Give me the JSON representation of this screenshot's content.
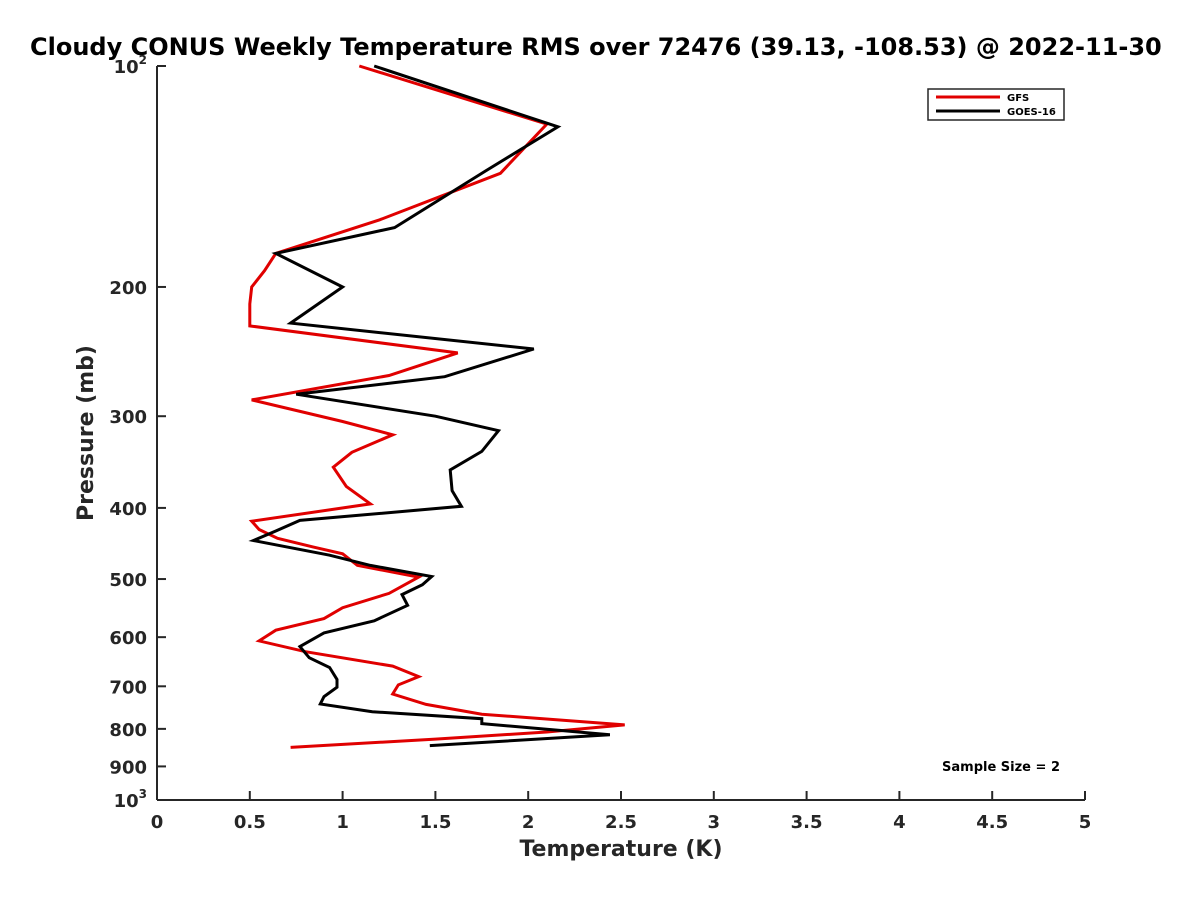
{
  "chart_data": {
    "type": "line",
    "title": "Cloudy CONUS Weekly Temperature RMS over 72476 (39.13, -108.53) @ 2022-11-30",
    "xlabel": "Temperature (K)",
    "ylabel": "Pressure (mb)",
    "xlim": [
      0,
      5
    ],
    "ylim": [
      100,
      1000
    ],
    "yscale": "log",
    "y_reversed": true,
    "grid": false,
    "legend_position": "top-right",
    "xticks": [
      "0",
      "0.5",
      "1",
      "1.5",
      "2",
      "2.5",
      "3",
      "3.5",
      "4",
      "4.5",
      "5"
    ],
    "yticks": [
      {
        "value": 100,
        "base": "10",
        "exp": "2"
      },
      {
        "value": 200,
        "label": "200"
      },
      {
        "value": 300,
        "label": "300"
      },
      {
        "value": 400,
        "label": "400"
      },
      {
        "value": 500,
        "label": "500"
      },
      {
        "value": 600,
        "label": "600"
      },
      {
        "value": 700,
        "label": "700"
      },
      {
        "value": 800,
        "label": "800"
      },
      {
        "value": 900,
        "label": "900"
      },
      {
        "value": 1000,
        "base": "10",
        "exp": "3"
      }
    ],
    "annotation": "Sample Size = 2",
    "series": [
      {
        "name": "GFS",
        "color": "#e00000",
        "points": [
          [
            1.09,
            100
          ],
          [
            2.1,
            120
          ],
          [
            1.85,
            140
          ],
          [
            1.2,
            162
          ],
          [
            0.64,
            180
          ],
          [
            0.58,
            190
          ],
          [
            0.51,
            200
          ],
          [
            0.5,
            211
          ],
          [
            0.5,
            226
          ],
          [
            1.62,
            246
          ],
          [
            1.25,
            264
          ],
          [
            0.51,
            285
          ],
          [
            1.0,
            305
          ],
          [
            1.27,
            318
          ],
          [
            1.05,
            336
          ],
          [
            0.95,
            352
          ],
          [
            1.02,
            374
          ],
          [
            1.15,
            395
          ],
          [
            0.51,
            417
          ],
          [
            0.55,
            428
          ],
          [
            0.65,
            440
          ],
          [
            0.84,
            452
          ],
          [
            1.0,
            462
          ],
          [
            1.08,
            479
          ],
          [
            1.41,
            497
          ],
          [
            1.25,
            523
          ],
          [
            1.0,
            547
          ],
          [
            0.9,
            566
          ],
          [
            0.64,
            587
          ],
          [
            0.55,
            607
          ],
          [
            0.8,
            628
          ],
          [
            1.27,
            657
          ],
          [
            1.41,
            679
          ],
          [
            1.3,
            697
          ],
          [
            1.27,
            717
          ],
          [
            1.45,
            741
          ],
          [
            1.75,
            764
          ],
          [
            2.52,
            790
          ],
          [
            2.1,
            808
          ],
          [
            1.5,
            826
          ],
          [
            0.72,
            848
          ]
        ]
      },
      {
        "name": "GOES-16",
        "color": "#000000",
        "points": [
          [
            1.17,
            100
          ],
          [
            2.16,
            121
          ],
          [
            1.77,
            139
          ],
          [
            1.28,
            166
          ],
          [
            0.64,
            180
          ],
          [
            1.0,
            200
          ],
          [
            0.72,
            224
          ],
          [
            2.03,
            243
          ],
          [
            1.55,
            265
          ],
          [
            0.75,
            280
          ],
          [
            1.5,
            300
          ],
          [
            1.84,
            314
          ],
          [
            1.75,
            335
          ],
          [
            1.58,
            355
          ],
          [
            1.59,
            379
          ],
          [
            1.64,
            398
          ],
          [
            0.77,
            416
          ],
          [
            0.64,
            430
          ],
          [
            0.52,
            443
          ],
          [
            0.93,
            464
          ],
          [
            1.15,
            479
          ],
          [
            1.48,
            496
          ],
          [
            1.43,
            509
          ],
          [
            1.32,
            525
          ],
          [
            1.35,
            543
          ],
          [
            1.17,
            570
          ],
          [
            0.9,
            592
          ],
          [
            0.77,
            618
          ],
          [
            0.82,
            640
          ],
          [
            0.93,
            660
          ],
          [
            0.97,
            685
          ],
          [
            0.97,
            702
          ],
          [
            0.9,
            723
          ],
          [
            0.88,
            740
          ],
          [
            1.16,
            758
          ],
          [
            1.75,
            775
          ],
          [
            1.75,
            787
          ],
          [
            2.44,
            815
          ],
          [
            1.47,
            843
          ]
        ]
      }
    ]
  }
}
